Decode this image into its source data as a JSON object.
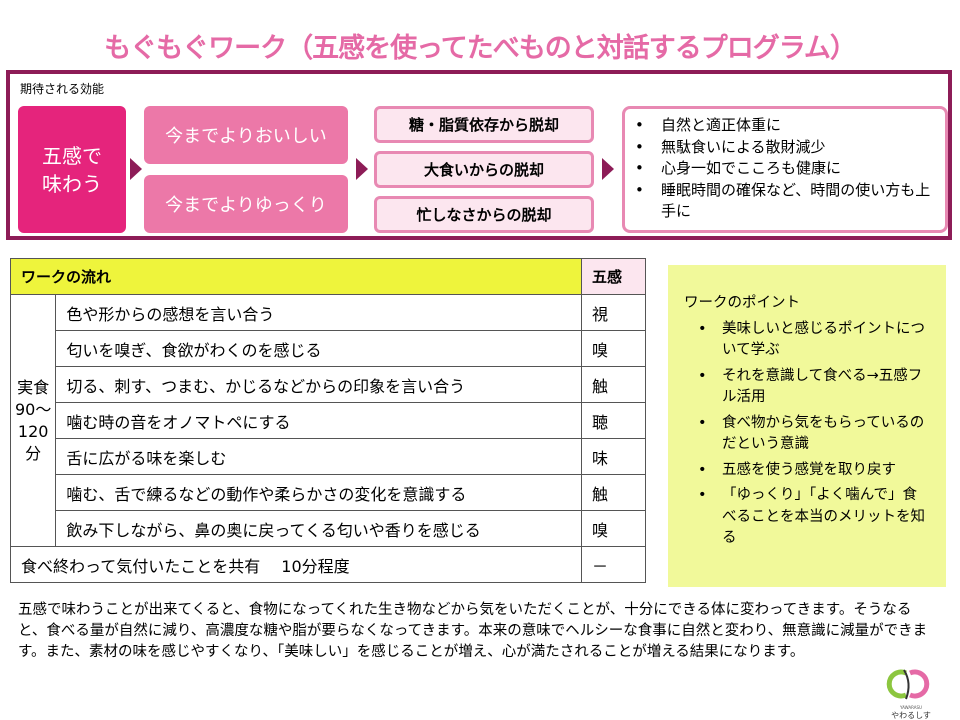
{
  "title": "もぐもぐワーク（五感を使ってたべものと対話するプログラム）",
  "effects": {
    "label": "期待される効能",
    "source": "五感で味わう",
    "middle": [
      "今までよりおいしい",
      "今までよりゆっくり"
    ],
    "outcomes": [
      "糖・脂質依存から脱却",
      "大食いからの脱却",
      "忙しなさからの脱却"
    ],
    "benefits": [
      "自然と適正体重に",
      "無駄食いによる散財減少",
      "心身一如でこころも健康に",
      "睡眠時間の確保など、時間の使い方も上手に"
    ],
    "colors": {
      "dark": "#8d1c57",
      "primary": "#e5247c",
      "light": "#ec78a8"
    }
  },
  "flow": {
    "header": "ワークの流れ",
    "sense_header": "五感",
    "side_label": "実食90〜120分",
    "rows": [
      {
        "text": "色や形からの感想を言い合う",
        "sense": "視"
      },
      {
        "text": "匂いを嗅ぎ、食欲がわくのを感じる",
        "sense": "嗅"
      },
      {
        "text": "切る、刺す、つまむ、かじるなどからの印象を言い合う",
        "sense": "触"
      },
      {
        "text": "噛む時の音をオノマトペにする",
        "sense": "聴"
      },
      {
        "text": "舌に広がる味を楽しむ",
        "sense": "味"
      },
      {
        "text": "噛む、舌で練るなどの動作や柔らかさの変化を意識する",
        "sense": "触"
      },
      {
        "text": "飲み下しながら、鼻の奥に戻ってくる匂いや香りを感じる",
        "sense": "嗅"
      }
    ],
    "footer": {
      "text": "食べ終わって気付いたことを共有　 10分程度",
      "sense": "－"
    }
  },
  "points": {
    "title": "ワークのポイント",
    "items": [
      "美味しいと感じるポイントについて学ぶ",
      "それを意識して食べる→五感フル活用",
      "食べ物から気をもらっているのだという意識",
      "五感を使う感覚を取り戻す",
      "「ゆっくり」「よく噛んで」食べることを本当のメリットを知る"
    ]
  },
  "paragraph": "五感で味わうことが出来てくると、食物になってくれた生き物などから気をいただくことが、十分にできる体に変わってきます。そうなると、食べる量が自然に減り、高濃度な糖や脂が要らなくなってきます。本来の意味でヘルシーな食事に自然と変わり、無意識に減量ができます。また、素材の味を感じやすくなり、「美味しい」を感じることが増え、心が満たされることが増える結果になります。",
  "logo": {
    "text": "YAWARASU やわるしす"
  }
}
